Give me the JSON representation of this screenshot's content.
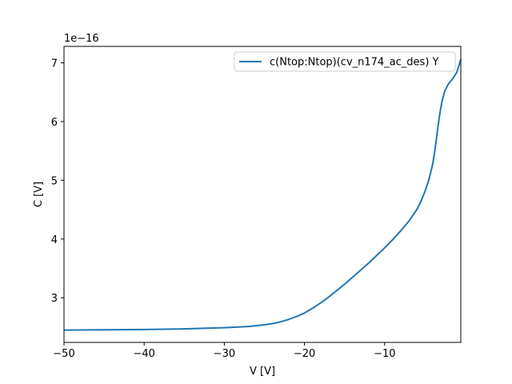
{
  "chart_data": {
    "type": "line",
    "title": "",
    "xlabel": "V [V]",
    "ylabel": "C [V]",
    "y_offset_label": "1e−16",
    "xlim": [
      -50,
      -0.5
    ],
    "ylim": [
      2.24,
      7.28
    ],
    "x_ticks": [
      -50,
      -40,
      -30,
      -20,
      -10
    ],
    "x_tick_labels": [
      "−50",
      "−40",
      "−30",
      "−20",
      "−10"
    ],
    "y_ticks": [
      3,
      4,
      5,
      6,
      7
    ],
    "y_tick_labels": [
      "3",
      "4",
      "5",
      "6",
      "7"
    ],
    "grid": false,
    "legend_position": "top-right",
    "series": [
      {
        "name": "c(Ntop:Ntop)(cv_n174_ac_des) Y",
        "color": "#1f77b4",
        "x": [
          -50,
          -45,
          -40,
          -35,
          -30,
          -27,
          -25,
          -24,
          -23,
          -22,
          -21,
          -20,
          -19,
          -18,
          -17,
          -16,
          -15,
          -14,
          -13,
          -12,
          -11,
          -10,
          -9,
          -8,
          -7,
          -6,
          -5.5,
          -5,
          -4.5,
          -4,
          -3.8,
          -3.6,
          -3.4,
          -3.2,
          -3.0,
          -2.8,
          -2.5,
          -2.2,
          -2,
          -1.5,
          -1,
          -0.7,
          -0.5
        ],
        "y": [
          2.45,
          2.455,
          2.46,
          2.47,
          2.49,
          2.51,
          2.54,
          2.56,
          2.59,
          2.63,
          2.68,
          2.74,
          2.82,
          2.91,
          3.01,
          3.12,
          3.23,
          3.35,
          3.47,
          3.59,
          3.72,
          3.85,
          3.99,
          4.14,
          4.3,
          4.5,
          4.63,
          4.8,
          5.0,
          5.28,
          5.45,
          5.64,
          5.86,
          6.06,
          6.23,
          6.37,
          6.52,
          6.6,
          6.65,
          6.73,
          6.84,
          6.97,
          7.06
        ]
      }
    ]
  }
}
